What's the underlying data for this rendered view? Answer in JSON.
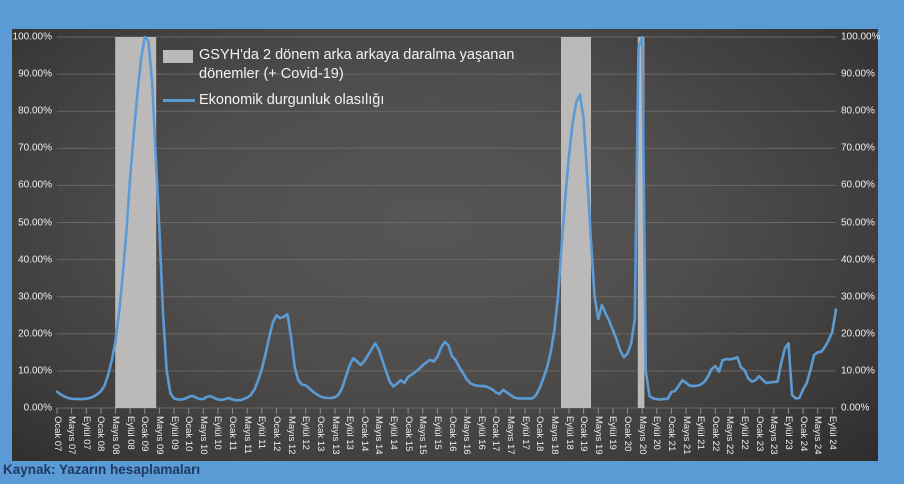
{
  "page": {
    "background": "#5b9bd5",
    "caption_color": "#1f3864"
  },
  "caption": {
    "text": "Kaynak: Yazarın hesaplamaları"
  },
  "legend": {
    "band_label": "GSYH'da 2 dönem arka arkaya daralma yaşanan dönemler (+ Covid-19)",
    "line_label": "Ekonomik durgunluk olasılığı"
  },
  "chart_data": {
    "type": "line",
    "title": "",
    "xlabel": "",
    "ylabel": "",
    "ylim": [
      0,
      100
    ],
    "grid": true,
    "legend_position": "top-left-inside",
    "y_tick_labels": [
      "0.00%",
      "10.00%",
      "20.00%",
      "30.00%",
      "40.00%",
      "50.00%",
      "60.00%",
      "70.00%",
      "80.00%",
      "90.00%",
      "100.00%"
    ],
    "x_tick_labels": [
      "Ocak 07",
      "Mayıs 07",
      "Eylül 07",
      "Ocak 08",
      "Mayıs 08",
      "Eylül 08",
      "Ocak 09",
      "Mayıs 09",
      "Eylül 09",
      "Ocak 10",
      "Mayıs 10",
      "Eylül 10",
      "Ocak 11",
      "Mayıs 11",
      "Eylül 11",
      "Ocak 12",
      "Mayıs 12",
      "Eylül 12",
      "Ocak 13",
      "Mayıs 13",
      "Eylül 13",
      "Ocak 14",
      "Mayıs 14",
      "Eylül 14",
      "Ocak 15",
      "Mayıs 15",
      "Eylül 15",
      "Ocak 16",
      "Mayıs 16",
      "Eylül 16",
      "Ocak 17",
      "Mayıs 17",
      "Eylül 17",
      "Ocak 18",
      "Mayıs 18",
      "Eylül 18",
      "Ocak 19",
      "Mayıs 19",
      "Eylül 19",
      "Ocak 20",
      "Mayıs 20",
      "Eylül 20",
      "Ocak 21",
      "Mayıs 21",
      "Eylül 21",
      "Ocak 22",
      "Mayıs 22",
      "Eylül 22",
      "Ocak 23",
      "Mayıs 23",
      "Eylül 23",
      "Ocak 24",
      "Mayıs 24",
      "Eylül 24"
    ],
    "x_months_per_tick": 4,
    "x_start": "Ocak 2007",
    "x_end": "Ekim 2024",
    "series": [
      {
        "name": "Ekonomik durgunluk olasılığı",
        "color": "#5b9bd5",
        "unit": "%",
        "values": [
          4.4,
          3.7,
          3.1,
          2.7,
          2.5,
          2.4,
          2.4,
          2.4,
          2.5,
          2.7,
          3.1,
          3.7,
          4.5,
          6,
          9,
          13,
          18,
          26,
          36,
          48,
          62,
          74,
          85,
          94,
          100,
          99,
          88,
          68,
          48,
          25,
          10,
          4,
          2.6,
          2.3,
          2.3,
          2.5,
          3,
          3.3,
          2.8,
          2.4,
          2.4,
          3,
          3.2,
          2.7,
          2.3,
          2.2,
          2.4,
          2.7,
          2.3,
          2.1,
          2.1,
          2.4,
          2.8,
          3.5,
          5,
          7.5,
          10.5,
          14.5,
          19,
          23,
          25,
          24.2,
          24.6,
          25.3,
          19,
          11,
          7.4,
          6.3,
          6.1,
          5.3,
          4.4,
          3.7,
          3.1,
          2.8,
          2.7,
          2.7,
          2.9,
          3.6,
          5.5,
          8.5,
          11.5,
          13.4,
          12.6,
          11.6,
          12.6,
          14.2,
          15.8,
          17.4,
          15.8,
          12.8,
          9.8,
          7,
          5.8,
          6.6,
          7.5,
          6.7,
          8.4,
          9,
          9.7,
          10.5,
          11.5,
          12.3,
          13,
          12.5,
          13.8,
          16.2,
          17.8,
          17,
          14,
          12.9,
          11,
          9.4,
          7.8,
          6.7,
          6.2,
          6,
          5.9,
          5.9,
          5.5,
          5,
          4.2,
          3.8,
          4.9,
          4.2,
          3.5,
          2.8,
          2.6,
          2.6,
          2.6,
          2.6,
          2.6,
          3.5,
          5.5,
          8,
          11,
          15,
          21,
          30,
          44,
          57,
          68,
          77,
          82.5,
          84.5,
          78,
          62,
          45,
          30,
          24,
          27.8,
          25.5,
          23.5,
          21,
          18.5,
          15.5,
          13.7,
          14.7,
          17.4,
          24,
          97,
          100,
          10,
          3.2,
          2.6,
          2.4,
          2.3,
          2.4,
          2.5,
          4.3,
          4.6,
          6,
          7.5,
          6.8,
          6,
          5.9,
          6,
          6.3,
          7,
          8.5,
          10.5,
          11.3,
          9.8,
          12.9,
          13.2,
          13.1,
          13.3,
          13.7,
          11,
          10.2,
          8,
          7.1,
          7.5,
          8.6,
          7.5,
          6.7,
          6.9,
          7,
          7.1,
          12,
          16,
          17.4,
          3.5,
          2.6,
          2.7,
          5,
          6.7,
          10.2,
          14.3,
          15,
          15.2,
          16.5,
          18.3,
          20.6,
          26.5
        ]
      }
    ],
    "shaded_regions": {
      "name": "GSYH'da 2 dönem arka arkaya daralma yaşanan dönemler (+ Covid-19)",
      "color": "#bcbab8",
      "unit": "month-index from Ocak 2007",
      "ranges": [
        [
          15.9,
          27.1
        ],
        [
          137.8,
          146.0
        ],
        [
          158.8,
          160.6
        ]
      ]
    },
    "grid_color": "#6a6765",
    "axis_text_color": "#efefef"
  }
}
